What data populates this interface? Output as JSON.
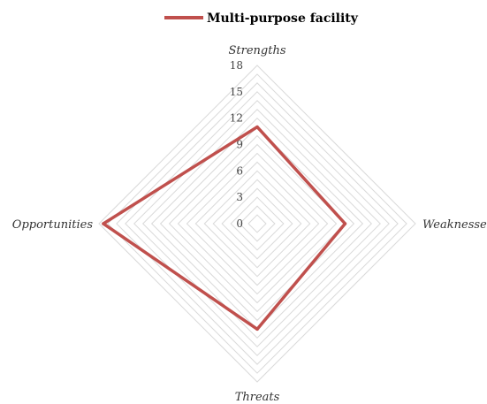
{
  "chart_data": {
    "type": "radar",
    "axes": [
      "Strengths",
      "Weaknesses",
      "Threats",
      "Opportunities"
    ],
    "r_ticks": [
      0,
      3,
      6,
      9,
      12,
      15,
      18
    ],
    "r_max": 18,
    "grid_step": 1,
    "grid": true,
    "legend_position": "top",
    "series": [
      {
        "name": "Multi-purpose facility",
        "values": [
          11,
          10,
          12,
          17.5
        ],
        "color": "#c0504d"
      }
    ]
  }
}
